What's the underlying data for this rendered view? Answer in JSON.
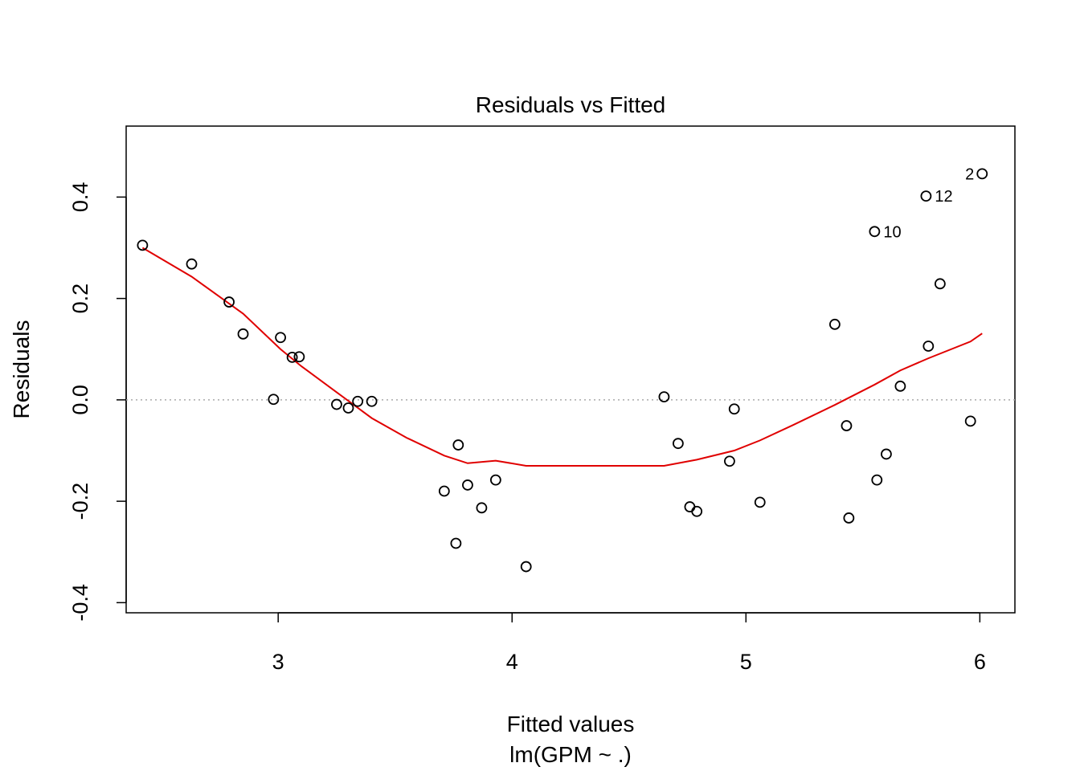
{
  "chart_data": {
    "type": "scatter",
    "title": "Residuals vs Fitted",
    "xlabel": "Fitted values",
    "sublabel": "lm(GPM ~ .)",
    "ylabel": "Residuals",
    "xlim": [
      2.35,
      6.15
    ],
    "ylim": [
      -0.42,
      0.54
    ],
    "xticks": [
      3,
      4,
      5,
      6
    ],
    "xtick_labels": [
      "3",
      "4",
      "5",
      "6"
    ],
    "yticks": [
      -0.4,
      -0.2,
      0.0,
      0.2,
      0.4
    ],
    "ytick_labels": [
      "-0.4",
      "-0.2",
      "0.0",
      "0.2",
      "0.4"
    ],
    "reference_line_y": 0.0,
    "colors": {
      "points": "#000000",
      "smooth": "#e00000",
      "reference": "#aaaaaa"
    },
    "points": [
      {
        "x": 2.42,
        "y": 0.305
      },
      {
        "x": 2.63,
        "y": 0.268
      },
      {
        "x": 2.79,
        "y": 0.193
      },
      {
        "x": 2.85,
        "y": 0.13
      },
      {
        "x": 2.98,
        "y": 0.001
      },
      {
        "x": 3.01,
        "y": 0.123
      },
      {
        "x": 3.06,
        "y": 0.084
      },
      {
        "x": 3.09,
        "y": 0.085
      },
      {
        "x": 3.25,
        "y": -0.009
      },
      {
        "x": 3.3,
        "y": -0.016
      },
      {
        "x": 3.34,
        "y": -0.003
      },
      {
        "x": 3.4,
        "y": -0.003
      },
      {
        "x": 3.71,
        "y": -0.18
      },
      {
        "x": 3.76,
        "y": -0.283
      },
      {
        "x": 3.77,
        "y": -0.089
      },
      {
        "x": 3.81,
        "y": -0.168
      },
      {
        "x": 3.87,
        "y": -0.213
      },
      {
        "x": 3.93,
        "y": -0.158
      },
      {
        "x": 4.06,
        "y": -0.329
      },
      {
        "x": 4.65,
        "y": 0.006
      },
      {
        "x": 4.71,
        "y": -0.086
      },
      {
        "x": 4.76,
        "y": -0.211
      },
      {
        "x": 4.79,
        "y": -0.22
      },
      {
        "x": 4.93,
        "y": -0.121
      },
      {
        "x": 4.95,
        "y": -0.018
      },
      {
        "x": 5.06,
        "y": -0.202
      },
      {
        "x": 5.38,
        "y": 0.149
      },
      {
        "x": 5.43,
        "y": -0.051
      },
      {
        "x": 5.44,
        "y": -0.233
      },
      {
        "x": 5.55,
        "y": 0.332,
        "label": "10"
      },
      {
        "x": 5.56,
        "y": -0.158
      },
      {
        "x": 5.6,
        "y": -0.107
      },
      {
        "x": 5.66,
        "y": 0.027
      },
      {
        "x": 5.77,
        "y": 0.402,
        "label": "12"
      },
      {
        "x": 5.78,
        "y": 0.106
      },
      {
        "x": 5.83,
        "y": 0.229
      },
      {
        "x": 5.96,
        "y": -0.042
      },
      {
        "x": 6.01,
        "y": 0.446,
        "label": "2"
      }
    ],
    "smooth_line": [
      {
        "x": 2.42,
        "y": 0.3
      },
      {
        "x": 2.63,
        "y": 0.243
      },
      {
        "x": 2.85,
        "y": 0.17
      },
      {
        "x": 3.01,
        "y": 0.1
      },
      {
        "x": 3.1,
        "y": 0.066
      },
      {
        "x": 3.25,
        "y": 0.015
      },
      {
        "x": 3.4,
        "y": -0.036
      },
      {
        "x": 3.55,
        "y": -0.075
      },
      {
        "x": 3.71,
        "y": -0.11
      },
      {
        "x": 3.81,
        "y": -0.125
      },
      {
        "x": 3.93,
        "y": -0.12
      },
      {
        "x": 4.06,
        "y": -0.13
      },
      {
        "x": 4.4,
        "y": -0.13
      },
      {
        "x": 4.65,
        "y": -0.13
      },
      {
        "x": 4.79,
        "y": -0.118
      },
      {
        "x": 4.95,
        "y": -0.1
      },
      {
        "x": 5.06,
        "y": -0.08
      },
      {
        "x": 5.2,
        "y": -0.05
      },
      {
        "x": 5.38,
        "y": -0.01
      },
      {
        "x": 5.55,
        "y": 0.03
      },
      {
        "x": 5.66,
        "y": 0.058
      },
      {
        "x": 5.78,
        "y": 0.082
      },
      {
        "x": 5.96,
        "y": 0.115
      },
      {
        "x": 6.01,
        "y": 0.131
      }
    ]
  }
}
